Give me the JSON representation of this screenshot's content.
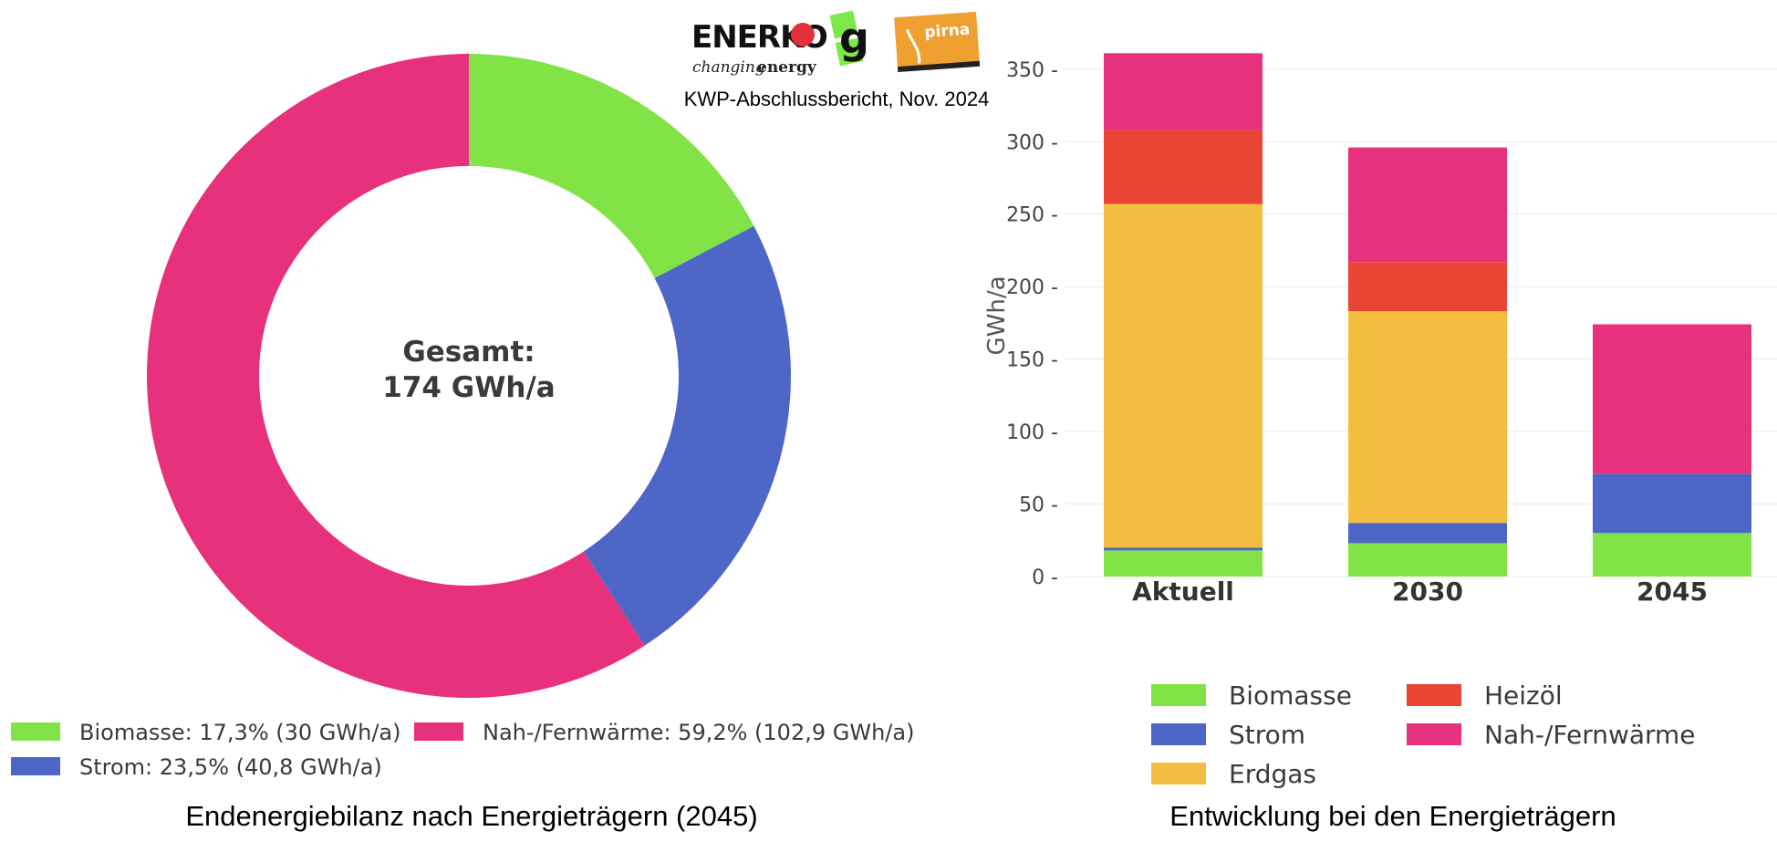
{
  "header": {
    "logo_enerko": "ENERKO",
    "logo_enerko_tagline_1": "changing",
    "logo_enerko_tagline_2": "energy",
    "logo_g": "g",
    "logo_pirna": "pirna",
    "report_label": "KWP-Abschlussbericht, Nov. 2024"
  },
  "colors": {
    "biomasse": "#82e346",
    "strom": "#4e66c6",
    "erdgas": "#f3bd40",
    "heizoel": "#e84534",
    "fernwaerme": "#e8317c",
    "enerko_red": "#e2303a",
    "pirna_orange": "#f0a030"
  },
  "chart_data": [
    {
      "type": "pie",
      "donut": true,
      "caption": "Endenergiebilanz nach Energieträgern (2045)",
      "center_label_1": "Gesamt:",
      "center_label_2": "174 GWh/a",
      "slices": [
        {
          "key": "biomasse",
          "label": "Biomasse",
          "percent": 17.3,
          "value": 30,
          "legend": "Biomasse: 17,3% (30 GWh/a)"
        },
        {
          "key": "strom",
          "label": "Strom",
          "percent": 23.5,
          "value": 40.8,
          "legend": "Strom: 23,5% (40,8 GWh/a)"
        },
        {
          "key": "fernwaerme",
          "label": "Nah-/Fernwärme",
          "percent": 59.2,
          "value": 102.9,
          "legend": "Nah-/Fernwärme: 59,2% (102,9 GWh/a)"
        }
      ],
      "legend_position": "bottom"
    },
    {
      "type": "bar",
      "stacked": true,
      "caption": "Entwicklung bei den Energieträgern",
      "ylabel": "GWh/a",
      "ylim": [
        0,
        365
      ],
      "yticks": [
        0,
        50,
        100,
        150,
        200,
        250,
        300,
        350
      ],
      "grid": true,
      "categories": [
        "Aktuell",
        "2030",
        "2045"
      ],
      "series": [
        {
          "key": "biomasse",
          "name": "Biomasse",
          "values": [
            18,
            23,
            30
          ]
        },
        {
          "key": "strom",
          "name": "Strom",
          "values": [
            2,
            14,
            41
          ]
        },
        {
          "key": "erdgas",
          "name": "Erdgas",
          "values": [
            237,
            146,
            0
          ]
        },
        {
          "key": "heizoel",
          "name": "Heizöl",
          "values": [
            51,
            34,
            0
          ]
        },
        {
          "key": "fernwaerme",
          "name": "Nah-/Fernwärme",
          "values": [
            53,
            79,
            103
          ]
        }
      ],
      "legend_position": "bottom"
    }
  ]
}
